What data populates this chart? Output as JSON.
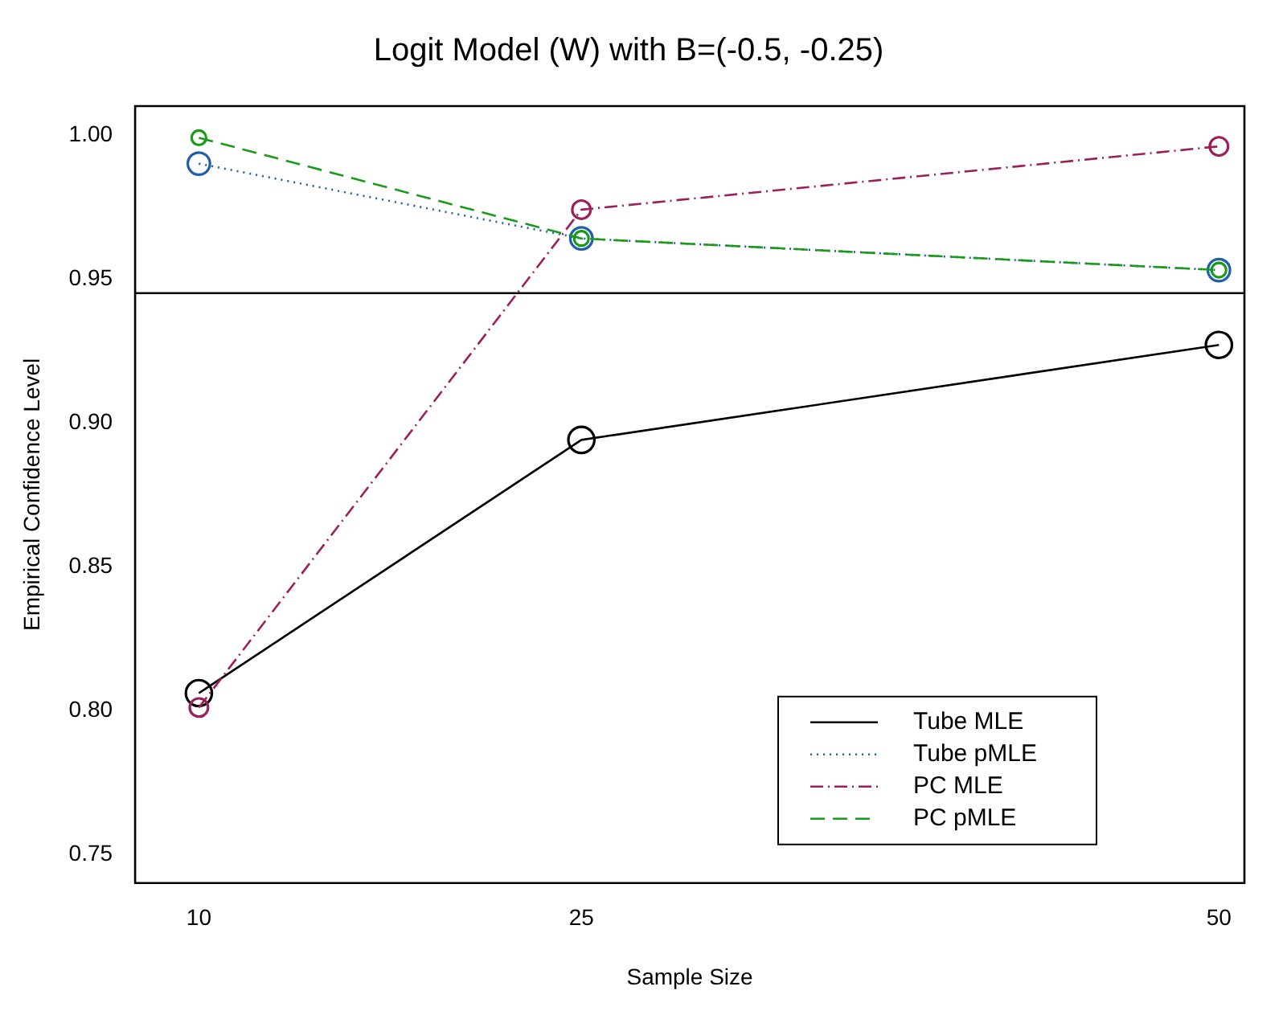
{
  "chart_data": {
    "type": "line",
    "title": "Logit Model (W) with B=(-0.5, -0.25)",
    "xlabel": "Sample Size",
    "ylabel": "Empirical Confidence Level",
    "x": [
      10,
      25,
      50
    ],
    "xlim": [
      7.5,
      51
    ],
    "xticks": [
      10,
      25,
      50
    ],
    "ylim": [
      0.74,
      1.01
    ],
    "yticks": [
      0.75,
      {
        "value": 0.8,
        "label": "0.80"
      },
      0.85,
      {
        "value": 0.9,
        "label": "0.90"
      },
      0.95,
      {
        "value": 1,
        "label": "1.00"
      }
    ],
    "series": [
      {
        "name": "Tube MLE",
        "color": "#000000",
        "line_style": "solid",
        "values": [
          0.806,
          0.894,
          0.927
        ]
      },
      {
        "name": "Tube pMLE",
        "color": "#1f5fa8",
        "line_style": "dotted",
        "values": [
          0.99,
          0.964,
          0.953
        ]
      },
      {
        "name": "PC MLE",
        "color": "#9b1f5a",
        "line_style": "dashdot",
        "values": [
          0.801,
          0.974,
          0.996
        ]
      },
      {
        "name": "PC pMLE",
        "color": "#1a9a1a",
        "line_style": "dashed",
        "values": [
          0.999,
          0.964,
          0.953
        ]
      }
    ],
    "ref_lines": [
      {
        "axis": "y",
        "value": 0.945,
        "color": "#000000"
      }
    ],
    "marker": "circle",
    "grid": false,
    "legend": "bottom right"
  }
}
